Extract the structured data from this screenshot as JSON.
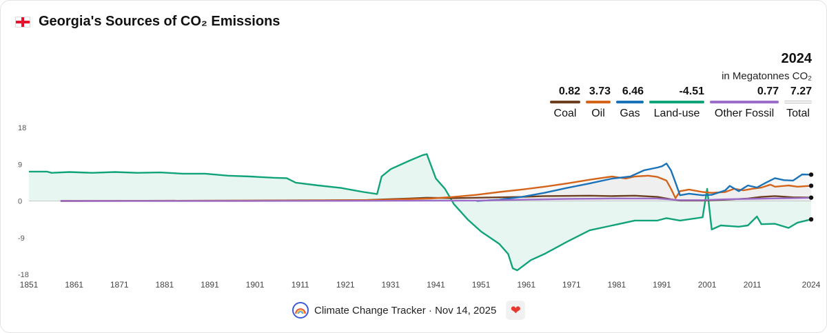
{
  "header": {
    "title": "Georgia's Sources of CO₂ Emissions",
    "flag_icon": "georgia-flag-icon"
  },
  "summary": {
    "year": "2024",
    "unit": "in Megatonnes CO₂",
    "legend": [
      {
        "key": "coal",
        "name": "Coal",
        "value": "0.82",
        "color": "#6b3f1f"
      },
      {
        "key": "oil",
        "name": "Oil",
        "value": "3.73",
        "color": "#d4641a"
      },
      {
        "key": "gas",
        "name": "Gas",
        "value": "6.46",
        "color": "#1a72b8"
      },
      {
        "key": "landuse",
        "name": "Land-use",
        "value": "-4.51",
        "color": "#10a37a"
      },
      {
        "key": "other",
        "name": "Other Fossil",
        "value": "0.77",
        "color": "#9b6cc8"
      },
      {
        "key": "total",
        "name": "Total",
        "value": "7.27",
        "color": "#bbbbbb"
      }
    ]
  },
  "footer": {
    "text": "Climate Change Tracker · Nov 14, 2025",
    "logo_icon": "rainbow-logo-icon",
    "heart_icon": "heart-icon"
  },
  "chart_data": {
    "type": "line",
    "title": "Georgia's Sources of CO₂ Emissions",
    "xlabel": "",
    "ylabel": "",
    "xlim": [
      1851,
      2024
    ],
    "ylim": [
      -18,
      18
    ],
    "y_ticks": [
      18,
      9,
      0,
      -9,
      -18
    ],
    "x_ticks": [
      1851,
      1861,
      1871,
      1881,
      1891,
      1901,
      1911,
      1921,
      1931,
      1941,
      1951,
      1961,
      1971,
      1981,
      1991,
      2001,
      2011,
      2024
    ],
    "grid": false,
    "series": [
      {
        "name": "Land-use",
        "color": "#10a37a",
        "points": [
          [
            1851,
            7.2
          ],
          [
            1855,
            7.2
          ],
          [
            1856,
            6.9
          ],
          [
            1860,
            7.1
          ],
          [
            1865,
            6.9
          ],
          [
            1870,
            7.1
          ],
          [
            1875,
            6.9
          ],
          [
            1880,
            7.0
          ],
          [
            1885,
            6.7
          ],
          [
            1890,
            6.7
          ],
          [
            1895,
            6.2
          ],
          [
            1900,
            6.0
          ],
          [
            1905,
            5.7
          ],
          [
            1908,
            5.6
          ],
          [
            1910,
            4.5
          ],
          [
            1915,
            3.8
          ],
          [
            1920,
            3.2
          ],
          [
            1925,
            2.2
          ],
          [
            1928,
            1.7
          ],
          [
            1929,
            6.0
          ],
          [
            1931,
            7.8
          ],
          [
            1935,
            9.8
          ],
          [
            1938,
            11.2
          ],
          [
            1939,
            11.5
          ],
          [
            1941,
            5.5
          ],
          [
            1943,
            3.0
          ],
          [
            1945,
            -0.8
          ],
          [
            1948,
            -4.5
          ],
          [
            1951,
            -7.5
          ],
          [
            1955,
            -10.5
          ],
          [
            1957,
            -13.0
          ],
          [
            1958,
            -16.5
          ],
          [
            1959,
            -17.0
          ],
          [
            1962,
            -14.5
          ],
          [
            1965,
            -13.0
          ],
          [
            1970,
            -10.0
          ],
          [
            1975,
            -7.2
          ],
          [
            1980,
            -6.0
          ],
          [
            1985,
            -4.8
          ],
          [
            1990,
            -4.8
          ],
          [
            1992,
            -4.2
          ],
          [
            1995,
            -4.8
          ],
          [
            2000,
            -4.0
          ],
          [
            2001,
            3.0
          ],
          [
            2002,
            -7.0
          ],
          [
            2004,
            -6.0
          ],
          [
            2008,
            -6.3
          ],
          [
            2010,
            -6.0
          ],
          [
            2012,
            -3.8
          ],
          [
            2013,
            -5.7
          ],
          [
            2016,
            -5.6
          ],
          [
            2019,
            -6.6
          ],
          [
            2021,
            -5.3
          ],
          [
            2024,
            -4.51
          ]
        ]
      },
      {
        "name": "Coal",
        "color": "#6b3f1f",
        "points": [
          [
            1858,
            0
          ],
          [
            1900,
            0.1
          ],
          [
            1925,
            0.2
          ],
          [
            1930,
            0.4
          ],
          [
            1935,
            0.6
          ],
          [
            1939,
            0.8
          ],
          [
            1945,
            0.7
          ],
          [
            1955,
            0.9
          ],
          [
            1960,
            1.0
          ],
          [
            1965,
            1.2
          ],
          [
            1975,
            1.3
          ],
          [
            1980,
            1.2
          ],
          [
            1985,
            1.3
          ],
          [
            1990,
            1.0
          ],
          [
            1993,
            0.4
          ],
          [
            1995,
            0.1
          ],
          [
            2000,
            0.1
          ],
          [
            2005,
            0.3
          ],
          [
            2010,
            0.6
          ],
          [
            2013,
            1.0
          ],
          [
            2016,
            1.2
          ],
          [
            2020,
            0.9
          ],
          [
            2024,
            0.82
          ]
        ]
      },
      {
        "name": "Oil",
        "color": "#d4641a",
        "points": [
          [
            1858,
            0
          ],
          [
            1910,
            0.1
          ],
          [
            1925,
            0.2
          ],
          [
            1930,
            0.3
          ],
          [
            1940,
            0.6
          ],
          [
            1945,
            1.0
          ],
          [
            1950,
            1.5
          ],
          [
            1955,
            2.2
          ],
          [
            1960,
            2.8
          ],
          [
            1965,
            3.5
          ],
          [
            1970,
            4.3
          ],
          [
            1975,
            5.2
          ],
          [
            1978,
            5.7
          ],
          [
            1980,
            6.0
          ],
          [
            1983,
            5.5
          ],
          [
            1985,
            6.0
          ],
          [
            1988,
            6.2
          ],
          [
            1990,
            5.9
          ],
          [
            1992,
            5.0
          ],
          [
            1993,
            3.0
          ],
          [
            1994,
            0.7
          ],
          [
            1995,
            2.4
          ],
          [
            1997,
            2.8
          ],
          [
            2000,
            2.2
          ],
          [
            2002,
            2.0
          ],
          [
            2005,
            2.2
          ],
          [
            2007,
            3.0
          ],
          [
            2009,
            2.6
          ],
          [
            2011,
            3.0
          ],
          [
            2013,
            3.3
          ],
          [
            2015,
            4.0
          ],
          [
            2016,
            3.5
          ],
          [
            2019,
            3.8
          ],
          [
            2021,
            3.5
          ],
          [
            2024,
            3.73
          ]
        ]
      },
      {
        "name": "Gas",
        "color": "#1a72b8",
        "points": [
          [
            1950,
            0
          ],
          [
            1955,
            0.3
          ],
          [
            1960,
            1.0
          ],
          [
            1965,
            2.0
          ],
          [
            1970,
            3.2
          ],
          [
            1975,
            4.3
          ],
          [
            1980,
            5.5
          ],
          [
            1984,
            6.0
          ],
          [
            1987,
            7.5
          ],
          [
            1990,
            8.2
          ],
          [
            1991,
            8.5
          ],
          [
            1992,
            9.2
          ],
          [
            1993,
            7.5
          ],
          [
            1994,
            4.5
          ],
          [
            1995,
            1.4
          ],
          [
            1997,
            1.8
          ],
          [
            2000,
            1.4
          ],
          [
            2002,
            1.5
          ],
          [
            2005,
            2.6
          ],
          [
            2006,
            3.7
          ],
          [
            2008,
            2.4
          ],
          [
            2010,
            3.8
          ],
          [
            2012,
            3.3
          ],
          [
            2014,
            4.5
          ],
          [
            2016,
            5.6
          ],
          [
            2018,
            5.1
          ],
          [
            2020,
            5.0
          ],
          [
            2022,
            6.5
          ],
          [
            2024,
            6.46
          ]
        ]
      },
      {
        "name": "Other Fossil",
        "color": "#9b6cc8",
        "points": [
          [
            1858,
            0
          ],
          [
            1900,
            0
          ],
          [
            1930,
            0.05
          ],
          [
            1950,
            0.1
          ],
          [
            1960,
            0.3
          ],
          [
            1970,
            0.5
          ],
          [
            1980,
            0.6
          ],
          [
            1990,
            0.6
          ],
          [
            1995,
            0.2
          ],
          [
            2000,
            0.2
          ],
          [
            2005,
            0.4
          ],
          [
            2010,
            0.5
          ],
          [
            2015,
            0.6
          ],
          [
            2020,
            0.7
          ],
          [
            2024,
            0.77
          ]
        ]
      }
    ]
  }
}
